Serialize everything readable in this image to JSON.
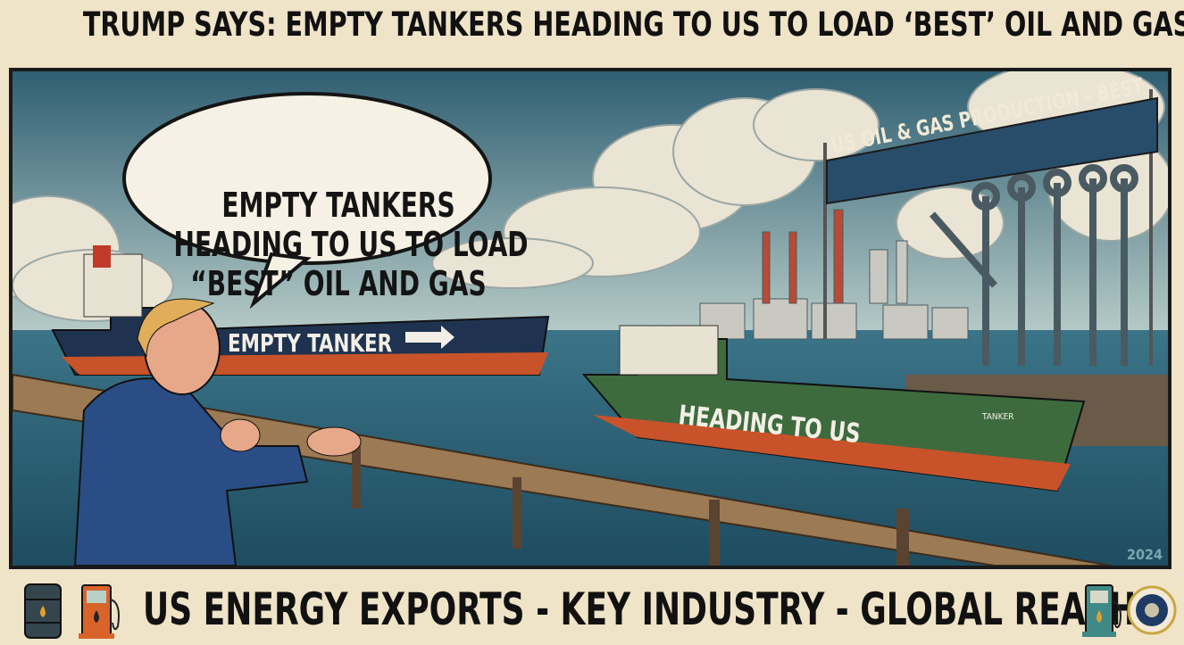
{
  "headline": "TRUMP SAYS: EMPTY TANKERS HEADING TO US TO LOAD ‘BEST’ OIL AND GAS",
  "speech_bubble": {
    "line1": "EMPTY TANKERS",
    "line2": "HEADING TO US TO LOAD",
    "line3": "“BEST” OIL AND GAS"
  },
  "banner": "US OIL & GAS PRODUCTION - BEST",
  "ship1_label": "EMPTY TANKER",
  "ship2_label": "HEADING TO US",
  "ship2_small_label": "TANKER",
  "year": "2024",
  "footer": "US ENERGY EXPORTS - KEY INDUSTRY - GLOBAL REACH",
  "icons": [
    "oil-barrel-icon",
    "fuel-pump-icon",
    "fuel-pump-icon",
    "presidential-seal-icon"
  ],
  "colors": {
    "background": "#efe3c8",
    "sea": "#2c6178",
    "hull_red": "#c8532a",
    "hull_navy": "#1f3350",
    "hull_green": "#3d6b3e"
  }
}
